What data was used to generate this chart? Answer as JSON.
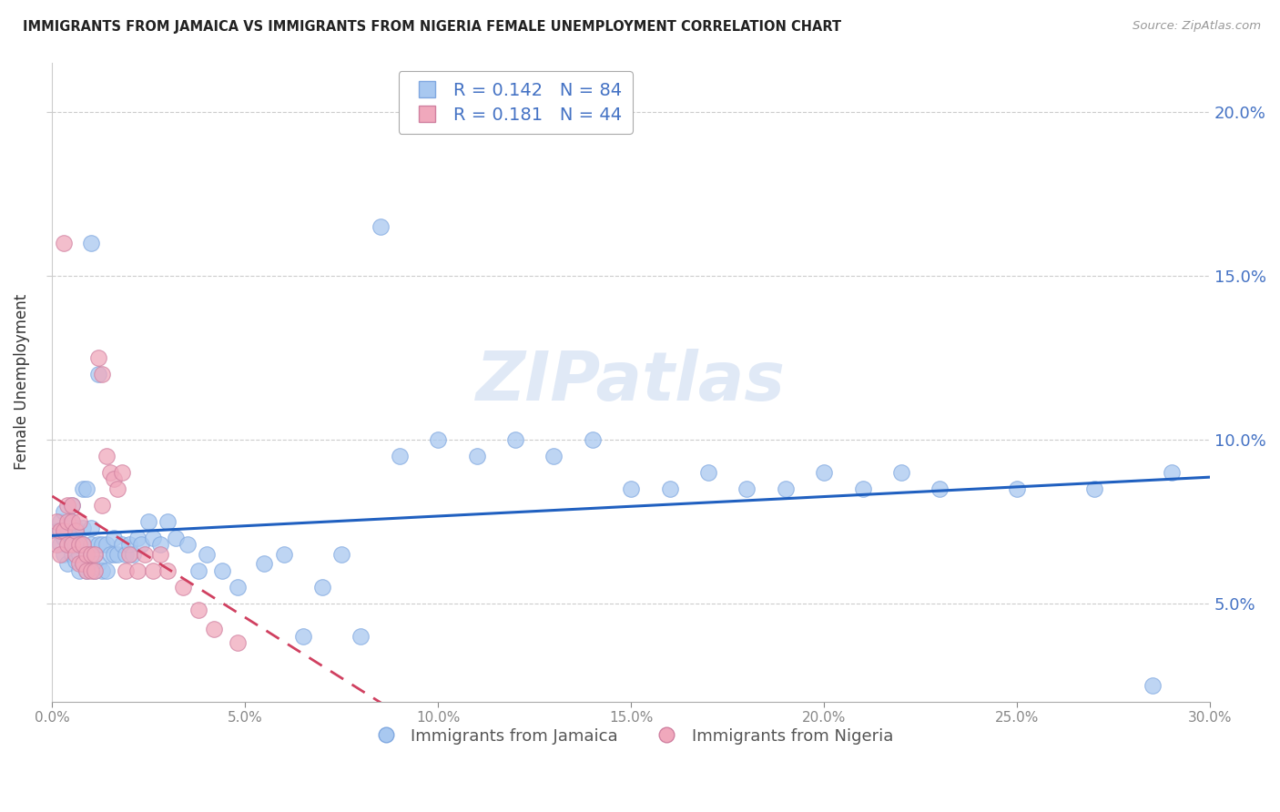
{
  "title": "IMMIGRANTS FROM JAMAICA VS IMMIGRANTS FROM NIGERIA FEMALE UNEMPLOYMENT CORRELATION CHART",
  "source": "Source: ZipAtlas.com",
  "ylabel": "Female Unemployment",
  "legend_jamaica": "Immigrants from Jamaica",
  "legend_nigeria": "Immigrants from Nigeria",
  "R_jamaica": 0.142,
  "N_jamaica": 84,
  "R_nigeria": 0.181,
  "N_nigeria": 44,
  "xlim": [
    0.0,
    0.3
  ],
  "ylim": [
    0.02,
    0.215
  ],
  "color_jamaica": "#A8C8F0",
  "color_nigeria": "#F0A8BC",
  "line_color_jamaica": "#2060C0",
  "line_color_nigeria": "#D04060",
  "axis_color": "#4472C4",
  "watermark": "ZIPatlas",
  "jamaica_x": [
    0.001,
    0.002,
    0.002,
    0.003,
    0.003,
    0.003,
    0.004,
    0.004,
    0.004,
    0.005,
    0.005,
    0.005,
    0.005,
    0.006,
    0.006,
    0.006,
    0.007,
    0.007,
    0.008,
    0.008,
    0.008,
    0.009,
    0.009,
    0.01,
    0.01,
    0.01,
    0.011,
    0.011,
    0.012,
    0.012,
    0.013,
    0.013,
    0.014,
    0.014,
    0.015,
    0.016,
    0.016,
    0.017,
    0.018,
    0.019,
    0.02,
    0.021,
    0.022,
    0.023,
    0.025,
    0.026,
    0.028,
    0.03,
    0.032,
    0.035,
    0.038,
    0.04,
    0.044,
    0.048,
    0.055,
    0.06,
    0.065,
    0.07,
    0.075,
    0.08,
    0.085,
    0.09,
    0.1,
    0.11,
    0.12,
    0.13,
    0.14,
    0.15,
    0.16,
    0.17,
    0.18,
    0.19,
    0.2,
    0.21,
    0.22,
    0.23,
    0.25,
    0.27,
    0.285,
    0.29,
    0.008,
    0.009,
    0.01,
    0.012
  ],
  "jamaica_y": [
    0.072,
    0.068,
    0.075,
    0.065,
    0.07,
    0.078,
    0.062,
    0.068,
    0.073,
    0.065,
    0.07,
    0.075,
    0.08,
    0.063,
    0.068,
    0.073,
    0.06,
    0.065,
    0.062,
    0.068,
    0.073,
    0.06,
    0.065,
    0.062,
    0.068,
    0.073,
    0.06,
    0.065,
    0.062,
    0.068,
    0.06,
    0.068,
    0.06,
    0.068,
    0.065,
    0.065,
    0.07,
    0.065,
    0.068,
    0.065,
    0.068,
    0.065,
    0.07,
    0.068,
    0.075,
    0.07,
    0.068,
    0.075,
    0.07,
    0.068,
    0.06,
    0.065,
    0.06,
    0.055,
    0.062,
    0.065,
    0.04,
    0.055,
    0.065,
    0.04,
    0.165,
    0.095,
    0.1,
    0.095,
    0.1,
    0.095,
    0.1,
    0.085,
    0.085,
    0.09,
    0.085,
    0.085,
    0.09,
    0.085,
    0.09,
    0.085,
    0.085,
    0.085,
    0.025,
    0.09,
    0.085,
    0.085,
    0.16,
    0.12
  ],
  "nigeria_x": [
    0.001,
    0.001,
    0.002,
    0.002,
    0.003,
    0.003,
    0.004,
    0.004,
    0.004,
    0.005,
    0.005,
    0.005,
    0.006,
    0.006,
    0.007,
    0.007,
    0.007,
    0.008,
    0.008,
    0.009,
    0.009,
    0.01,
    0.01,
    0.011,
    0.011,
    0.012,
    0.013,
    0.013,
    0.014,
    0.015,
    0.016,
    0.017,
    0.018,
    0.019,
    0.02,
    0.022,
    0.024,
    0.026,
    0.028,
    0.03,
    0.034,
    0.038,
    0.042,
    0.048
  ],
  "nigeria_y": [
    0.068,
    0.075,
    0.065,
    0.072,
    0.16,
    0.072,
    0.068,
    0.075,
    0.08,
    0.068,
    0.075,
    0.08,
    0.065,
    0.072,
    0.062,
    0.068,
    0.075,
    0.062,
    0.068,
    0.06,
    0.065,
    0.06,
    0.065,
    0.06,
    0.065,
    0.125,
    0.12,
    0.08,
    0.095,
    0.09,
    0.088,
    0.085,
    0.09,
    0.06,
    0.065,
    0.06,
    0.065,
    0.06,
    0.065,
    0.06,
    0.055,
    0.048,
    0.042,
    0.038
  ]
}
